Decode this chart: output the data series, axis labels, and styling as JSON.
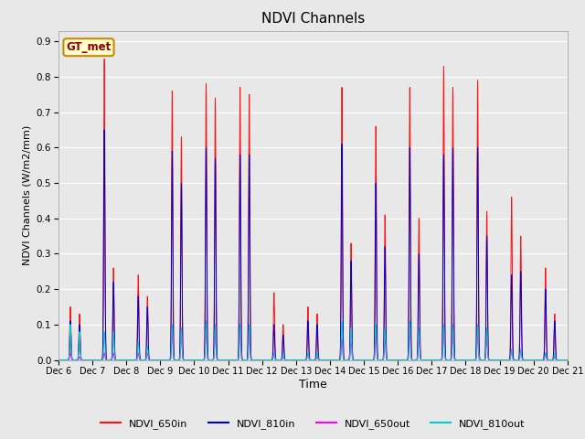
{
  "title": "NDVI Channels",
  "xlabel": "Time",
  "ylabel": "NDVI Channels (W/m2/mm)",
  "ylim": [
    0.0,
    0.93
  ],
  "yticks": [
    0.0,
    0.1,
    0.2,
    0.3,
    0.4,
    0.5,
    0.6,
    0.7,
    0.8,
    0.9
  ],
  "fig_facecolor": "#e8e8e8",
  "plot_facecolor": "#e8e8e8",
  "annotation_text": "GT_met",
  "annotation_bg": "#ffffcc",
  "annotation_border": "#cc8800",
  "legend_labels": [
    "NDVI_650in",
    "NDVI_810in",
    "NDVI_650out",
    "NDVI_810out"
  ],
  "line_colors": {
    "NDVI_650in": "#ff1111",
    "NDVI_810in": "#0000cc",
    "NDVI_650out": "#ff00ff",
    "NDVI_810out": "#00cccc"
  },
  "num_days": 15,
  "xtick_labels": [
    "Dec 6",
    "Dec 7",
    "Dec 8",
    "Dec 9",
    "Dec 10",
    "Dec 11",
    "Dec 12",
    "Dec 13",
    "Dec 14",
    "Dec 15",
    "Dec 16",
    "Dec 17",
    "Dec 18",
    "Dec 19",
    "Dec 20",
    "Dec 21"
  ],
  "peak1_650in": [
    0.15,
    0.85,
    0.24,
    0.76,
    0.78,
    0.77,
    0.19,
    0.15,
    0.77,
    0.66,
    0.77,
    0.83,
    0.79,
    0.46,
    0.26
  ],
  "peak2_650in": [
    0.13,
    0.26,
    0.18,
    0.63,
    0.74,
    0.75,
    0.1,
    0.13,
    0.33,
    0.41,
    0.4,
    0.77,
    0.42,
    0.35,
    0.13
  ],
  "peak1_810in": [
    0.11,
    0.65,
    0.18,
    0.59,
    0.6,
    0.58,
    0.1,
    0.11,
    0.61,
    0.5,
    0.6,
    0.58,
    0.6,
    0.24,
    0.2
  ],
  "peak2_810in": [
    0.1,
    0.22,
    0.15,
    0.5,
    0.57,
    0.58,
    0.07,
    0.1,
    0.28,
    0.32,
    0.3,
    0.6,
    0.35,
    0.25,
    0.11
  ],
  "peak1_650out": [
    0.02,
    0.02,
    0.02,
    0.08,
    0.08,
    0.08,
    0.02,
    0.02,
    0.06,
    0.07,
    0.08,
    0.08,
    0.07,
    0.03,
    0.02
  ],
  "peak2_650out": [
    0.01,
    0.02,
    0.02,
    0.07,
    0.07,
    0.07,
    0.01,
    0.01,
    0.05,
    0.06,
    0.06,
    0.07,
    0.06,
    0.03,
    0.01
  ],
  "peak1_810out": [
    0.1,
    0.08,
    0.05,
    0.1,
    0.11,
    0.1,
    0.02,
    0.02,
    0.11,
    0.1,
    0.11,
    0.1,
    0.1,
    0.03,
    0.02
  ],
  "peak2_810out": [
    0.08,
    0.08,
    0.04,
    0.09,
    0.1,
    0.1,
    0.02,
    0.02,
    0.09,
    0.09,
    0.09,
    0.1,
    0.09,
    0.03,
    0.02
  ]
}
